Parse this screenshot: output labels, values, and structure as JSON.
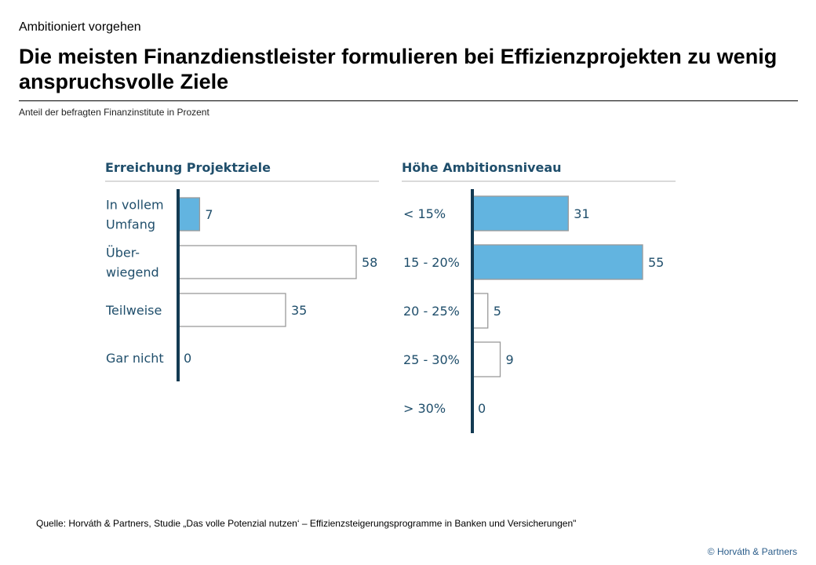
{
  "header": {
    "kicker": "Ambitioniert vorgehen",
    "title": "Die meisten Finanzdienstleister formulieren bei Effizienzprojekten zu wenig anspruchsvolle Ziele",
    "subtitle": "Anteil der befragten Finanzinstitute in Prozent"
  },
  "footer": {
    "source": "Quelle: Horváth  & Partners, Studie „Das volle Potenzial nutzen‘ – Effizienzsteigerungsprogramme  in Banken und Versicherungen\"",
    "copyright": "© Horváth  & Partners"
  },
  "colors": {
    "highlight": "#62b4e0",
    "outline": "#9a9a9a",
    "axis": "#133a52",
    "text": "#1f4e6b"
  },
  "chart_data": [
    {
      "type": "bar",
      "orientation": "horizontal",
      "title": "Erreichung Projektziele",
      "categories": [
        [
          "In vollem",
          "Umfang"
        ],
        [
          "Über-",
          "wiegend"
        ],
        [
          "Teilweise"
        ],
        [
          "Gar nicht"
        ]
      ],
      "values": [
        7,
        58,
        35,
        0
      ],
      "highlighted": [
        true,
        false,
        false,
        false
      ],
      "xlim": [
        0,
        58
      ]
    },
    {
      "type": "bar",
      "orientation": "horizontal",
      "title": "Höhe Ambitionsniveau",
      "categories": [
        [
          "< 15%"
        ],
        [
          "15 - 20%"
        ],
        [
          "20 - 25%"
        ],
        [
          "25 - 30%"
        ],
        [
          "> 30%"
        ]
      ],
      "values": [
        31,
        55,
        5,
        9,
        0
      ],
      "highlighted": [
        true,
        true,
        false,
        false,
        false
      ],
      "xlim": [
        0,
        55
      ]
    }
  ]
}
